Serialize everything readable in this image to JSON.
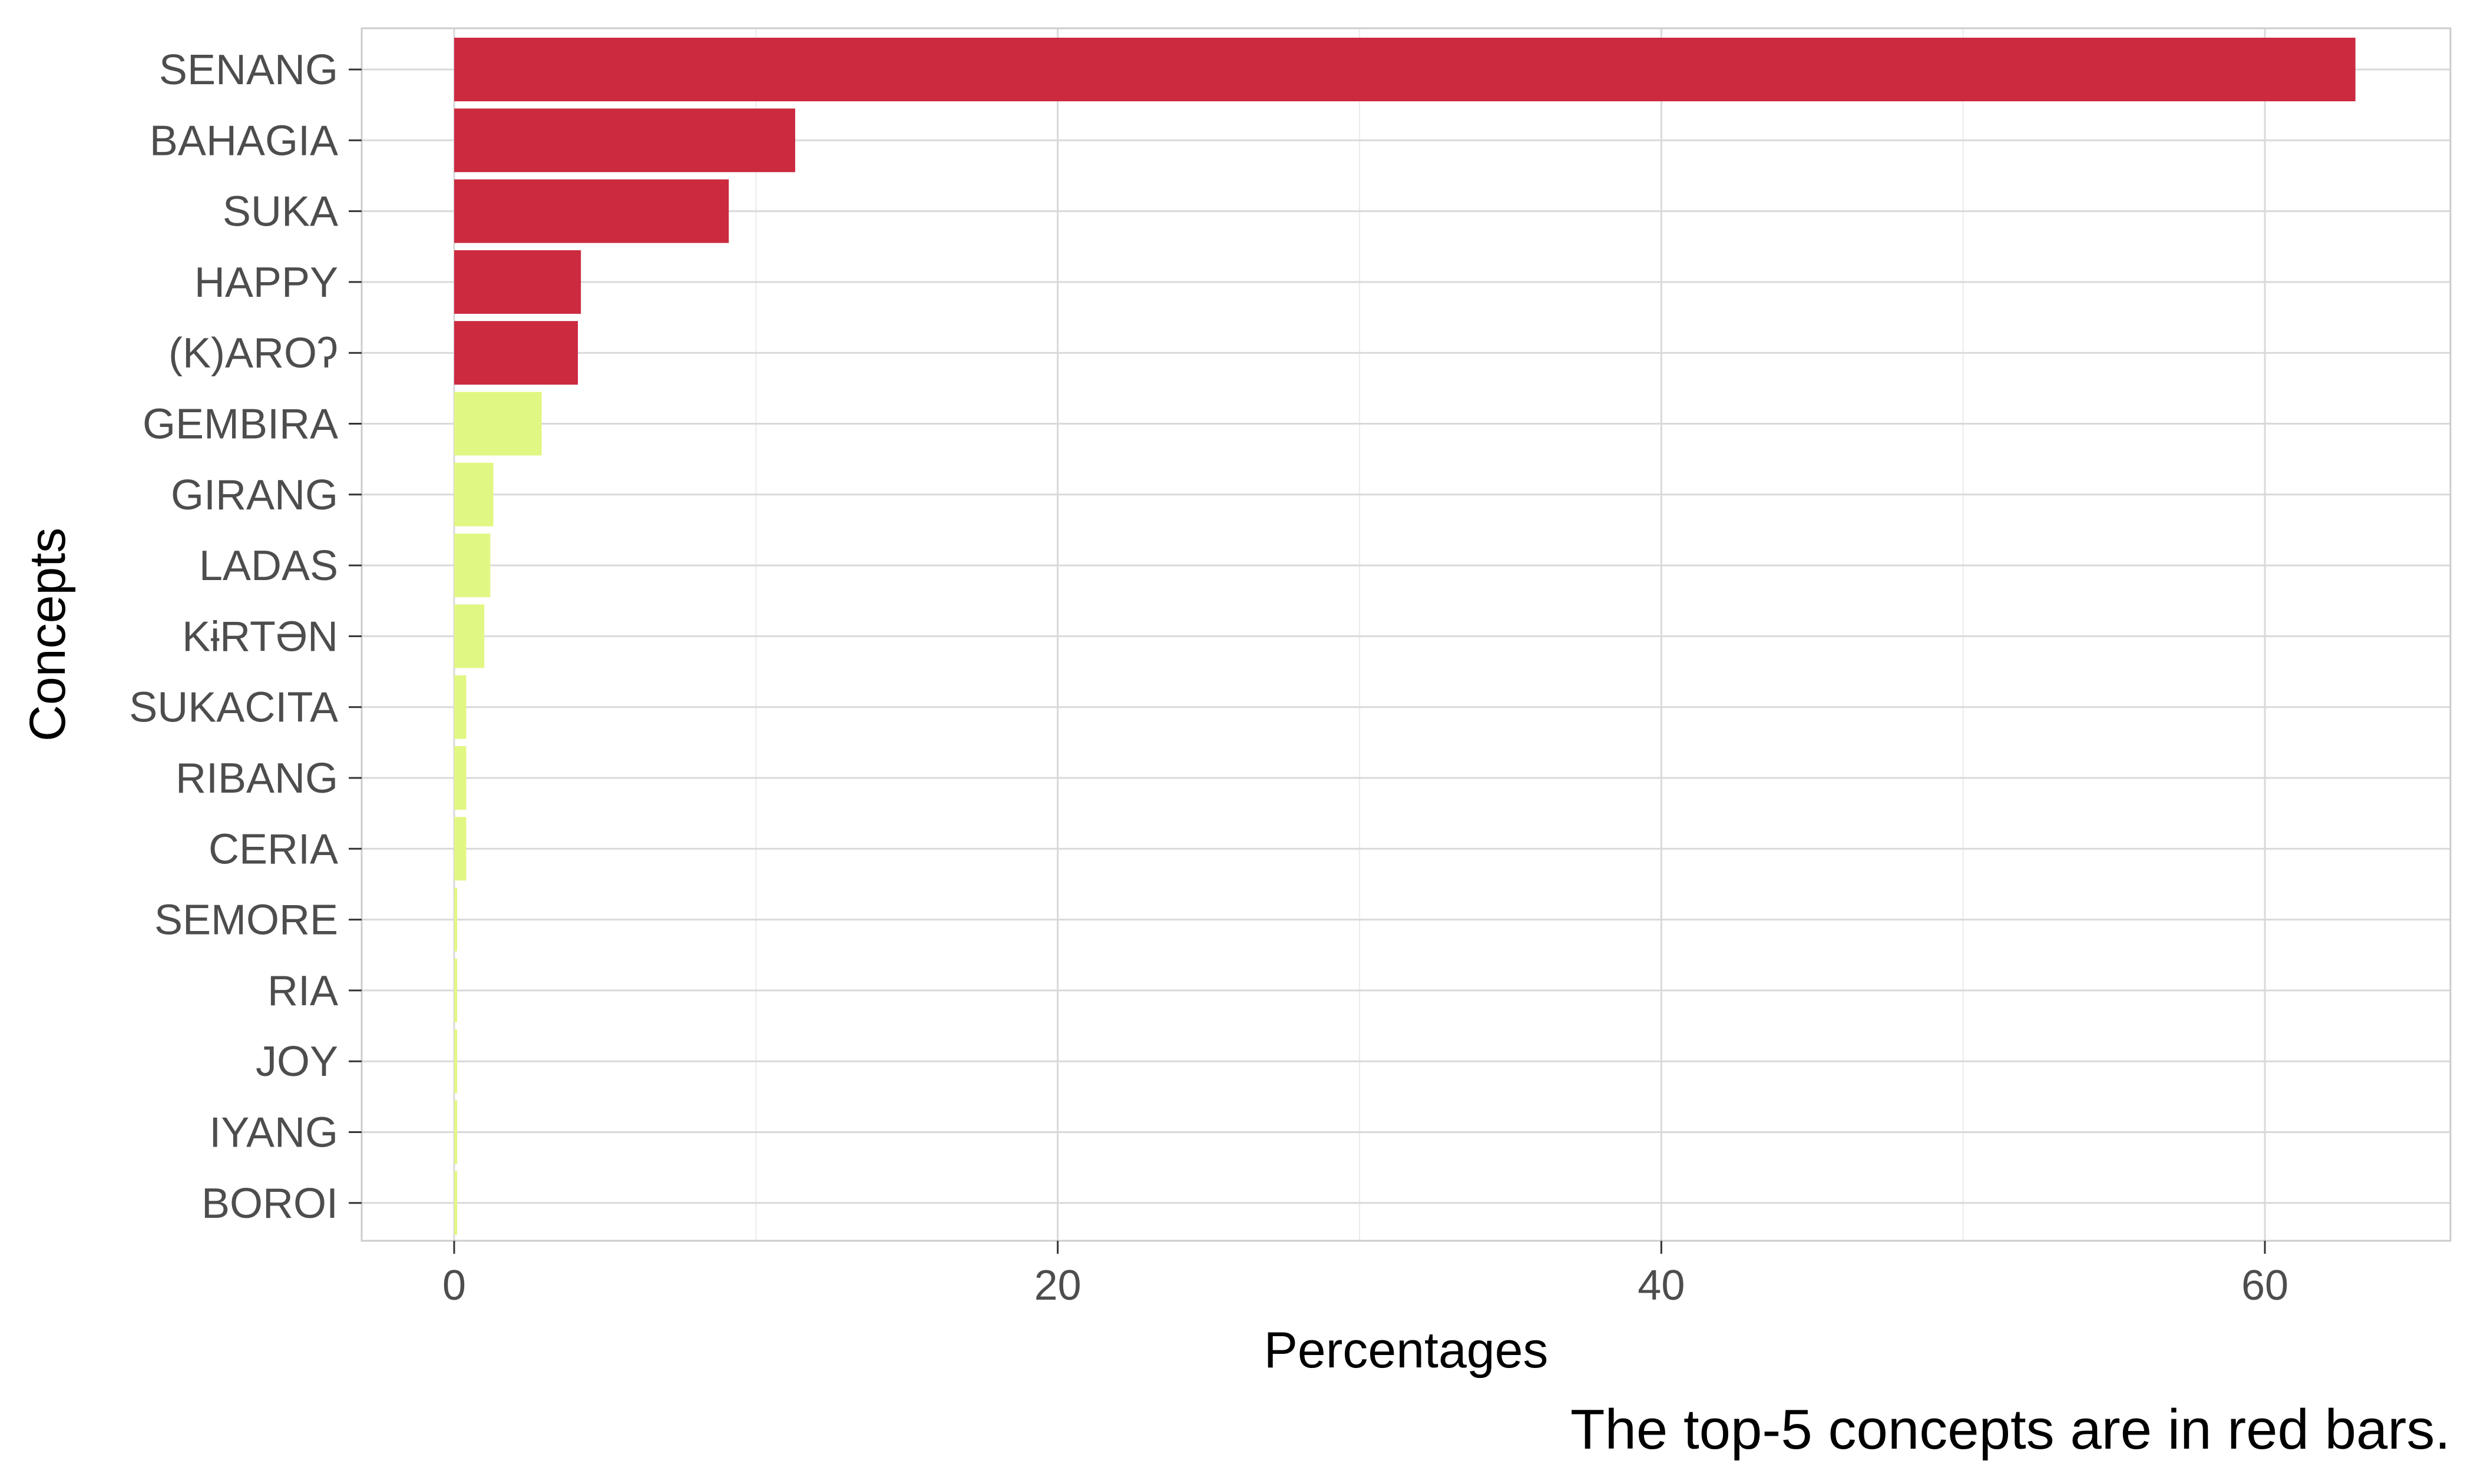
{
  "chart_data": {
    "type": "bar",
    "orientation": "horizontal",
    "categories": [
      "SENANG",
      "BAHAGIA",
      "SUKA",
      "HAPPY",
      "(K)AROʔ",
      "GEMBIRA",
      "GIRANG",
      "LADAS",
      "KɨRTƏN",
      "SUKACITA",
      "RIBANG",
      "CERIA",
      "SEMORE",
      "RIA",
      "JOY",
      "IYANG",
      "BOROI"
    ],
    "values": [
      63.0,
      11.3,
      9.1,
      4.2,
      4.1,
      2.9,
      1.3,
      1.2,
      1.0,
      0.4,
      0.4,
      0.4,
      0.1,
      0.1,
      0.1,
      0.1,
      0.1
    ],
    "top_n_highlighted": 5,
    "colors": {
      "top": "#cb2a3f",
      "rest": "#e1f783",
      "grid": "#d9d9d9",
      "panel_border": "#cccccc"
    },
    "xlabel": "Percentages",
    "ylabel": "Concepts",
    "xlim": [
      -3.1,
      66.1
    ],
    "xticks": [
      0,
      20,
      40,
      60
    ],
    "caption": "The top-5 concepts are in red bars.",
    "grid": true,
    "legend": "none"
  }
}
